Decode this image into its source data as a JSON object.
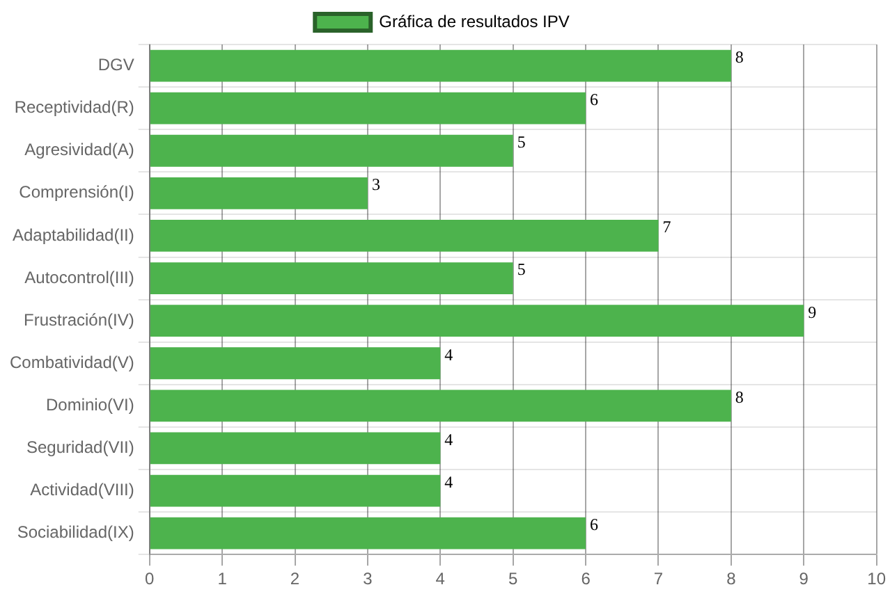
{
  "chart_data": {
    "type": "bar",
    "orientation": "horizontal",
    "categories": [
      "DGV",
      "Receptividad(R)",
      "Agresividad(A)",
      "Comprensión(I)",
      "Adaptabilidad(II)",
      "Autocontrol(III)",
      "Frustración(IV)",
      "Combatividad(V)",
      "Dominio(VI)",
      "Seguridad(VII)",
      "Actividad(VIII)",
      "Sociabilidad(IX)"
    ],
    "series": [
      {
        "name": "Gráfica de resultados IPV",
        "color": "#4db34d",
        "values": [
          8,
          6,
          5,
          3,
          7,
          5,
          9,
          4,
          8,
          4,
          4,
          6
        ]
      }
    ],
    "xlim": [
      0,
      10
    ],
    "xticks": [
      0,
      1,
      2,
      3,
      4,
      5,
      6,
      7,
      8,
      9,
      10
    ],
    "grid": true,
    "legend": "top",
    "data_labels": true
  }
}
